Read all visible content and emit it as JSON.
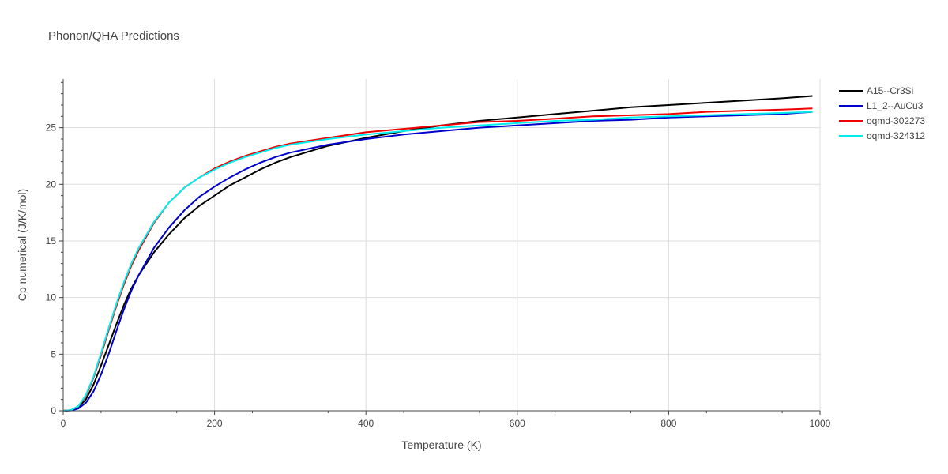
{
  "chart_data": {
    "type": "line",
    "title": "Phonon/QHA Predictions",
    "xlabel": "Temperature (K)",
    "ylabel": "Cp numerical (J/K/mol)",
    "xlim": [
      0,
      1000
    ],
    "ylim": [
      0,
      29.3
    ],
    "xticks": [
      0,
      200,
      400,
      600,
      800,
      1000
    ],
    "yticks": [
      0,
      5,
      10,
      15,
      20,
      25
    ],
    "grid": true,
    "legend_position": "top-right",
    "series": [
      {
        "name": "A15--Cr3Si",
        "color": "#000000",
        "x": [
          0,
          10,
          20,
          30,
          40,
          50,
          60,
          70,
          80,
          90,
          100,
          120,
          140,
          160,
          180,
          200,
          220,
          240,
          260,
          280,
          300,
          350,
          400,
          450,
          500,
          550,
          600,
          650,
          700,
          750,
          800,
          850,
          900,
          950,
          990
        ],
        "y": [
          0,
          0.05,
          0.3,
          1.0,
          2.3,
          4.0,
          5.8,
          7.6,
          9.3,
          10.8,
          12.0,
          14.0,
          15.6,
          17.0,
          18.1,
          19.0,
          19.9,
          20.6,
          21.3,
          21.9,
          22.4,
          23.4,
          24.1,
          24.7,
          25.2,
          25.6,
          25.9,
          26.2,
          26.5,
          26.8,
          27.0,
          27.2,
          27.4,
          27.6,
          27.8
        ]
      },
      {
        "name": "L1_2--AuCu3",
        "color": "#0000cc",
        "x": [
          0,
          10,
          20,
          30,
          40,
          50,
          60,
          70,
          80,
          90,
          100,
          120,
          140,
          160,
          180,
          200,
          220,
          240,
          260,
          280,
          300,
          350,
          400,
          450,
          500,
          550,
          600,
          650,
          700,
          750,
          800,
          850,
          900,
          950,
          990
        ],
        "y": [
          0,
          0.03,
          0.2,
          0.7,
          1.7,
          3.2,
          5.0,
          7.0,
          8.9,
          10.6,
          12.0,
          14.4,
          16.2,
          17.7,
          18.9,
          19.8,
          20.6,
          21.3,
          21.9,
          22.4,
          22.8,
          23.5,
          24.0,
          24.4,
          24.7,
          25.0,
          25.2,
          25.4,
          25.6,
          25.7,
          25.9,
          26.0,
          26.1,
          26.2,
          26.4
        ]
      },
      {
        "name": "oqmd-302273",
        "color": "#ee0000",
        "x": [
          0,
          10,
          20,
          30,
          40,
          50,
          60,
          70,
          80,
          90,
          100,
          120,
          140,
          160,
          180,
          200,
          220,
          240,
          260,
          280,
          300,
          350,
          400,
          450,
          500,
          550,
          600,
          650,
          700,
          750,
          800,
          850,
          900,
          950,
          990
        ],
        "y": [
          0,
          0.06,
          0.4,
          1.3,
          2.9,
          4.9,
          7.1,
          9.2,
          11.1,
          12.8,
          14.2,
          16.6,
          18.4,
          19.7,
          20.6,
          21.4,
          22.0,
          22.5,
          22.9,
          23.3,
          23.6,
          24.1,
          24.6,
          24.9,
          25.2,
          25.5,
          25.6,
          25.8,
          26.0,
          26.1,
          26.2,
          26.4,
          26.5,
          26.6,
          26.7
        ]
      },
      {
        "name": "oqmd-324312",
        "color": "#00eeee",
        "x": [
          0,
          10,
          20,
          30,
          40,
          50,
          60,
          70,
          80,
          90,
          100,
          120,
          140,
          160,
          180,
          200,
          220,
          240,
          260,
          280,
          300,
          350,
          400,
          450,
          500,
          550,
          600,
          650,
          700,
          750,
          800,
          850,
          900,
          950,
          990
        ],
        "y": [
          0,
          0.06,
          0.4,
          1.4,
          3.0,
          5.1,
          7.3,
          9.4,
          11.3,
          13.0,
          14.4,
          16.7,
          18.4,
          19.7,
          20.6,
          21.3,
          21.9,
          22.4,
          22.8,
          23.2,
          23.5,
          24.0,
          24.4,
          24.7,
          25.0,
          25.2,
          25.4,
          25.6,
          25.7,
          25.9,
          26.0,
          26.1,
          26.2,
          26.3,
          26.4
        ]
      }
    ]
  }
}
